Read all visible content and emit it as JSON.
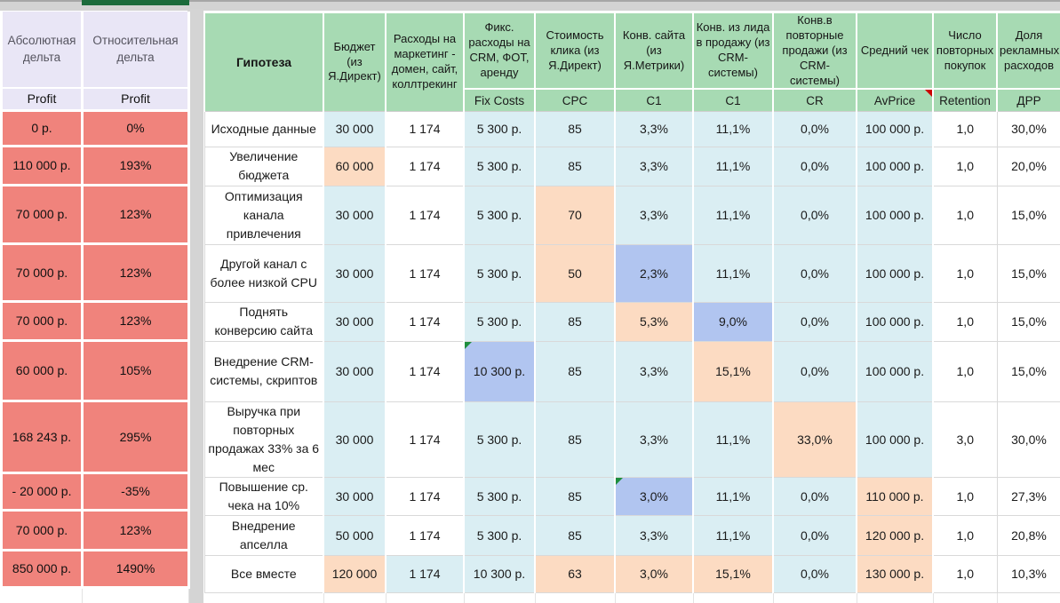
{
  "colors": {
    "sheet_tab_green": "#1c6b3c",
    "header_green": "#a7dab3",
    "delta_header_lavender": "#e9e6f6",
    "delta_value_salmon": "#f0837c",
    "cell_light_blue": "#daeef3",
    "cell_peach": "#fcdbc2",
    "cell_periwinkle": "#b1c5f0",
    "gridline_gray": "#d9d9d9"
  },
  "left_panel": {
    "columns": [
      {
        "header": "Абсолютная дельта",
        "metric": "Profit"
      },
      {
        "header": "Относительная дельта",
        "metric": "Profit"
      }
    ],
    "rows": [
      {
        "abs": "0 р.",
        "rel": "0%"
      },
      {
        "abs": "110 000 р.",
        "rel": "193%"
      },
      {
        "abs": "70 000 р.",
        "rel": "123%"
      },
      {
        "abs": "70 000 р.",
        "rel": "123%"
      },
      {
        "abs": "70 000 р.",
        "rel": "123%"
      },
      {
        "abs": "60 000 р.",
        "rel": "105%"
      },
      {
        "abs": "168 243 р.",
        "rel": "295%"
      },
      {
        "abs": "- 20 000 р.",
        "rel": "-35%"
      },
      {
        "abs": "70 000 р.",
        "rel": "123%"
      },
      {
        "abs": "850 000 р.",
        "rel": "1490%"
      }
    ]
  },
  "main_table": {
    "corner_header": "Гипотеза",
    "columns": [
      {
        "title": "Бюджет (из Я.Директ)",
        "code": ""
      },
      {
        "title": "Расходы на маркетинг - домен, сайт, коллтрекинг",
        "code": ""
      },
      {
        "title": "Фикс. расходы на CRM, ФОТ, аренду",
        "code": "Fix Costs"
      },
      {
        "title": "Стоимость клика (из Я.Директ)",
        "code": "CPC"
      },
      {
        "title": "Конв. сайта (из Я.Метрики)",
        "code": "C1"
      },
      {
        "title": "Конв. из лида в продажу (из CRM-системы)",
        "code": "C1"
      },
      {
        "title": "Конв.в повторные продажи (из CRM-системы)",
        "code": "CR"
      },
      {
        "title": "Средний чек",
        "code": "AvPrice",
        "note": "red"
      },
      {
        "title": "Число повторных покупок",
        "code": "Retention"
      },
      {
        "title": "Доля рекламных расходов",
        "code": "ДРР"
      }
    ],
    "rows": [
      {
        "hypothesis": "Исходные данные",
        "cells": [
          {
            "v": "30 000",
            "c": "b"
          },
          {
            "v": "1 174",
            "c": "w"
          },
          {
            "v": "5 300 р.",
            "c": "b"
          },
          {
            "v": "85",
            "c": "b"
          },
          {
            "v": "3,3%",
            "c": "b"
          },
          {
            "v": "11,1%",
            "c": "b"
          },
          {
            "v": "0,0%",
            "c": "b"
          },
          {
            "v": "100 000 р.",
            "c": "b"
          },
          {
            "v": "1,0",
            "c": "w"
          },
          {
            "v": "30,0%",
            "c": "w"
          }
        ]
      },
      {
        "hypothesis": "Увеличение бюджета",
        "cells": [
          {
            "v": "60 000",
            "c": "p"
          },
          {
            "v": "1 174",
            "c": "w"
          },
          {
            "v": "5 300 р.",
            "c": "b"
          },
          {
            "v": "85",
            "c": "b"
          },
          {
            "v": "3,3%",
            "c": "b"
          },
          {
            "v": "11,1%",
            "c": "b"
          },
          {
            "v": "0,0%",
            "c": "b"
          },
          {
            "v": "100 000 р.",
            "c": "b"
          },
          {
            "v": "1,0",
            "c": "w"
          },
          {
            "v": "20,0%",
            "c": "w"
          }
        ]
      },
      {
        "hypothesis": "Оптимизация канала привлечения",
        "cells": [
          {
            "v": "30 000",
            "c": "b"
          },
          {
            "v": "1 174",
            "c": "w"
          },
          {
            "v": "5 300 р.",
            "c": "b"
          },
          {
            "v": "70",
            "c": "p"
          },
          {
            "v": "3,3%",
            "c": "b"
          },
          {
            "v": "11,1%",
            "c": "b"
          },
          {
            "v": "0,0%",
            "c": "b"
          },
          {
            "v": "100 000 р.",
            "c": "b"
          },
          {
            "v": "1,0",
            "c": "w"
          },
          {
            "v": "15,0%",
            "c": "w"
          }
        ]
      },
      {
        "hypothesis": "Другой канал с более низкой CPU",
        "cells": [
          {
            "v": "30 000",
            "c": "b"
          },
          {
            "v": "1 174",
            "c": "w"
          },
          {
            "v": "5 300 р.",
            "c": "b"
          },
          {
            "v": "50",
            "c": "p"
          },
          {
            "v": "2,3%",
            "c": "v"
          },
          {
            "v": "11,1%",
            "c": "b"
          },
          {
            "v": "0,0%",
            "c": "b"
          },
          {
            "v": "100 000 р.",
            "c": "b"
          },
          {
            "v": "1,0",
            "c": "w"
          },
          {
            "v": "15,0%",
            "c": "w"
          }
        ]
      },
      {
        "hypothesis": "Поднять конверсию сайта",
        "cells": [
          {
            "v": "30 000",
            "c": "b"
          },
          {
            "v": "1 174",
            "c": "w"
          },
          {
            "v": "5 300 р.",
            "c": "b"
          },
          {
            "v": "85",
            "c": "b"
          },
          {
            "v": "5,3%",
            "c": "p"
          },
          {
            "v": "9,0%",
            "c": "v"
          },
          {
            "v": "0,0%",
            "c": "b"
          },
          {
            "v": "100 000 р.",
            "c": "b"
          },
          {
            "v": "1,0",
            "c": "w"
          },
          {
            "v": "15,0%",
            "c": "w"
          }
        ]
      },
      {
        "hypothesis": "Внедрение CRM-системы, скриптов",
        "cells": [
          {
            "v": "30 000",
            "c": "b"
          },
          {
            "v": "1 174",
            "c": "w"
          },
          {
            "v": "10 300 р.",
            "c": "v",
            "note": "green"
          },
          {
            "v": "85",
            "c": "b"
          },
          {
            "v": "3,3%",
            "c": "b"
          },
          {
            "v": "15,1%",
            "c": "p"
          },
          {
            "v": "0,0%",
            "c": "b"
          },
          {
            "v": "100 000 р.",
            "c": "b"
          },
          {
            "v": "1,0",
            "c": "w"
          },
          {
            "v": "15,0%",
            "c": "w"
          }
        ]
      },
      {
        "hypothesis": "Выручка при повторных продажах 33% за 6 мес",
        "cells": [
          {
            "v": "30 000",
            "c": "b"
          },
          {
            "v": "1 174",
            "c": "w"
          },
          {
            "v": "5 300 р.",
            "c": "b"
          },
          {
            "v": "85",
            "c": "b"
          },
          {
            "v": "3,3%",
            "c": "b"
          },
          {
            "v": "11,1%",
            "c": "b"
          },
          {
            "v": "33,0%",
            "c": "p"
          },
          {
            "v": "100 000 р.",
            "c": "b"
          },
          {
            "v": "3,0",
            "c": "w"
          },
          {
            "v": "30,0%",
            "c": "w"
          }
        ]
      },
      {
        "hypothesis": "Повышение ср. чека на 10%",
        "cells": [
          {
            "v": "30 000",
            "c": "b"
          },
          {
            "v": "1 174",
            "c": "w"
          },
          {
            "v": "5 300 р.",
            "c": "b"
          },
          {
            "v": "85",
            "c": "b"
          },
          {
            "v": "3,0%",
            "c": "v",
            "note": "green"
          },
          {
            "v": "11,1%",
            "c": "b"
          },
          {
            "v": "0,0%",
            "c": "b"
          },
          {
            "v": "110 000 р.",
            "c": "p"
          },
          {
            "v": "1,0",
            "c": "w"
          },
          {
            "v": "27,3%",
            "c": "w"
          }
        ]
      },
      {
        "hypothesis": "Внедрение апселла",
        "cells": [
          {
            "v": "50 000",
            "c": "b"
          },
          {
            "v": "1 174",
            "c": "w"
          },
          {
            "v": "5 300 р.",
            "c": "b"
          },
          {
            "v": "85",
            "c": "b"
          },
          {
            "v": "3,3%",
            "c": "b"
          },
          {
            "v": "11,1%",
            "c": "b"
          },
          {
            "v": "0,0%",
            "c": "b"
          },
          {
            "v": "120 000 р.",
            "c": "p"
          },
          {
            "v": "1,0",
            "c": "w"
          },
          {
            "v": "20,8%",
            "c": "w"
          }
        ]
      },
      {
        "hypothesis": "Все вместе",
        "cells": [
          {
            "v": "120 000",
            "c": "p"
          },
          {
            "v": "1 174",
            "c": "b"
          },
          {
            "v": "10 300 р.",
            "c": "b"
          },
          {
            "v": "63",
            "c": "p"
          },
          {
            "v": "3,0%",
            "c": "p"
          },
          {
            "v": "15,1%",
            "c": "p"
          },
          {
            "v": "0,0%",
            "c": "b"
          },
          {
            "v": "130 000 р.",
            "c": "p"
          },
          {
            "v": "1,0",
            "c": "w"
          },
          {
            "v": "10,3%",
            "c": "w"
          }
        ]
      }
    ]
  }
}
